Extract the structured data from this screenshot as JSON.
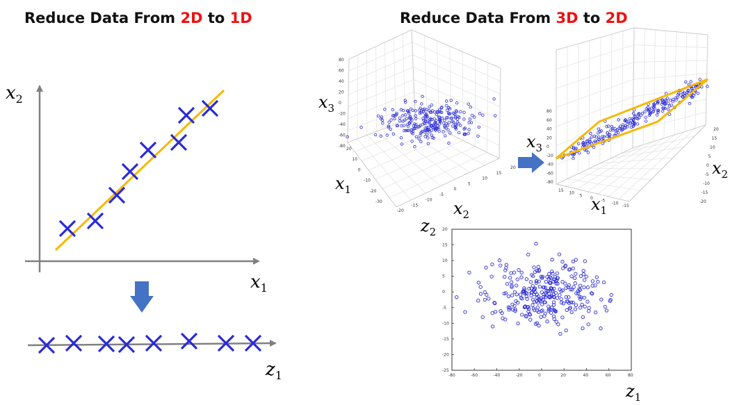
{
  "title_left": {
    "prefix": "Reduce Data From ",
    "from": "2D",
    "mid": " to ",
    "to": "1D"
  },
  "title_right": {
    "prefix": "Reduce Data From ",
    "from": "3D",
    "mid": " to ",
    "to": "2D"
  },
  "colors": {
    "highlight": "#ee1111",
    "marker": "#2a2ad6",
    "fit_line": "#f5b800",
    "arrow": "#4472c4",
    "axis": "#808080"
  },
  "labels_2d": {
    "x": "x",
    "x_sub": "1",
    "y": "x",
    "y_sub": "2",
    "z": "z",
    "z_sub": "1"
  },
  "labels_3d_a": {
    "x1": "x",
    "x1_sub": "1",
    "x2": "x",
    "x2_sub": "2",
    "x3": "x",
    "x3_sub": "3"
  },
  "labels_3d_b": {
    "x1": "x",
    "x1_sub": "1",
    "x2": "x",
    "x2_sub": "2",
    "x3": "x",
    "x3_sub": "3"
  },
  "labels_2d_plot": {
    "z1": "z",
    "z1_sub": "1",
    "z2": "z",
    "z2_sub": "2"
  },
  "scatter2d": {
    "x_ticks": [
      "-80",
      "-60",
      "-40",
      "-20",
      "0",
      "20",
      "40",
      "60",
      "80"
    ],
    "y_ticks": [
      "20",
      "15",
      "10",
      "5",
      "0",
      "-5",
      "-10",
      "-15",
      "-20",
      "-25"
    ]
  },
  "cube_a": {
    "z_ticks": [
      "80",
      "60",
      "40",
      "20",
      "0",
      "-20",
      "-40",
      "-60",
      "-80"
    ],
    "x_ticks": [
      "20",
      "10",
      "0",
      "-10",
      "-20",
      "-30"
    ],
    "y_ticks": [
      "-20",
      "-15",
      "-10",
      "-5",
      "0",
      "5",
      "10",
      "15",
      "20"
    ]
  },
  "cube_b": {
    "z_ticks": [
      "80",
      "60",
      "40",
      "20",
      "0",
      "-20",
      "-40",
      "-60",
      "-80"
    ],
    "x_ticks": [
      "15",
      "10",
      "5",
      "0",
      "-5",
      "-10",
      "-15"
    ],
    "y_ticks": [
      "20",
      "15",
      "10",
      "5",
      "0",
      "-5",
      "-10",
      "-15",
      "-20"
    ]
  }
}
